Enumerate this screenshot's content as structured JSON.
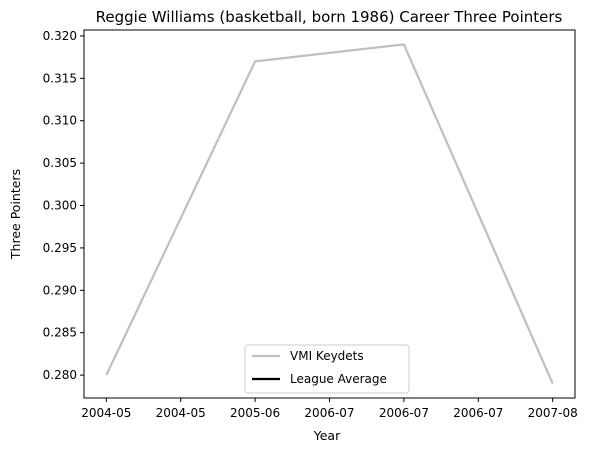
{
  "chart_data": {
    "type": "line",
    "title": "Reggie Williams (basketball, born 1986) Career Three Pointers",
    "xlabel": "Year",
    "ylabel": "Three Pointers",
    "x_tick_labels": [
      "2004-05",
      "2004-05",
      "2005-06",
      "2006-07",
      "2006-07",
      "2006-07",
      "2007-08"
    ],
    "x_positions": [
      0,
      1,
      2,
      3,
      4,
      5,
      6
    ],
    "y_tick_labels": [
      "0.280",
      "0.285",
      "0.290",
      "0.295",
      "0.300",
      "0.305",
      "0.310",
      "0.315",
      "0.320"
    ],
    "ylim": [
      0.2773,
      0.3207
    ],
    "xlim": [
      -0.3,
      6.3
    ],
    "series": [
      {
        "name": "VMI Keydets",
        "color": "#bfbfbf",
        "points": [
          {
            "x": 0,
            "y": 0.28
          },
          {
            "x": 2,
            "y": 0.317
          },
          {
            "x": 4,
            "y": 0.319
          },
          {
            "x": 6,
            "y": 0.279
          }
        ]
      },
      {
        "name": "League Average",
        "color": "#000000",
        "points": []
      }
    ],
    "legend_placement": "lower center",
    "grid": false
  }
}
